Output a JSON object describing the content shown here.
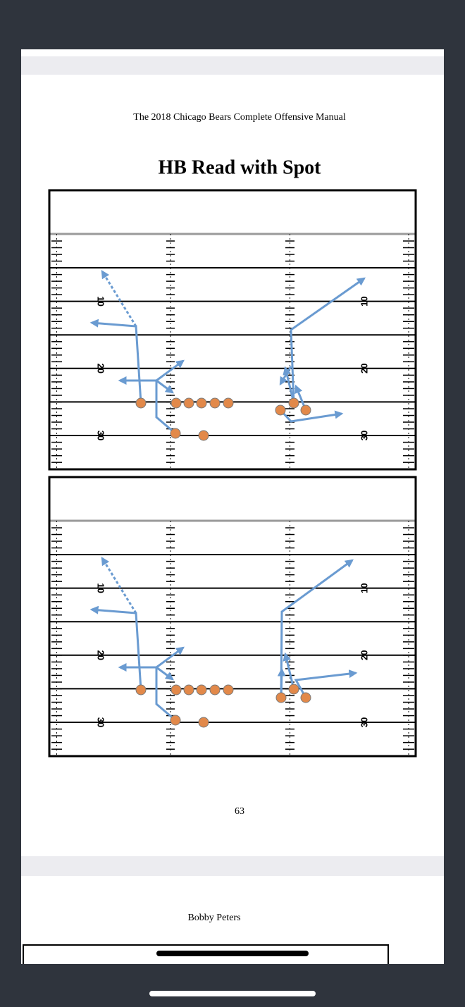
{
  "header": "The 2018 Chicago Bears Complete Offensive Manual",
  "title": "HB Read with Spot",
  "yard_numbers": [
    "10",
    "20",
    "30"
  ],
  "page_number": "63",
  "next_page": {
    "author": "Bobby Peters"
  }
}
